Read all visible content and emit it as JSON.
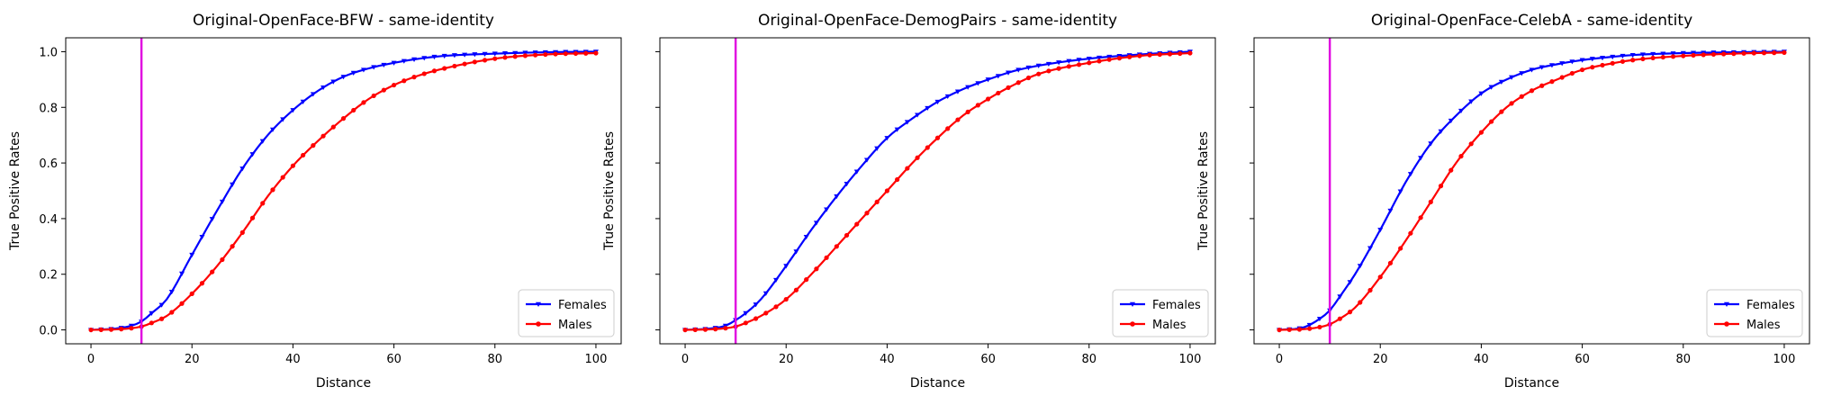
{
  "chart_data": [
    {
      "type": "line",
      "title": "Original-OpenFace-BFW - same-identity",
      "xlabel": "Distance",
      "ylabel": "True Positive Rates",
      "xlim": [
        -5,
        105
      ],
      "ylim": [
        -0.05,
        1.05
      ],
      "xticks": [
        0,
        20,
        40,
        60,
        80,
        100
      ],
      "yticks": [
        0.0,
        0.2,
        0.4,
        0.6,
        0.8,
        1.0
      ],
      "ytick_labels_shown": true,
      "threshold_x": 10,
      "threshold_color": "#e000e0",
      "legend_position": "lower right",
      "series": [
        {
          "name": "Females",
          "color": "#0000ff",
          "marker": "triangle-down",
          "x": [
            0,
            5,
            8,
            10,
            12,
            15,
            20,
            25,
            30,
            35,
            40,
            45,
            50,
            55,
            60,
            65,
            70,
            80,
            90,
            100
          ],
          "y": [
            0.0,
            0.005,
            0.015,
            0.03,
            0.06,
            0.11,
            0.27,
            0.43,
            0.58,
            0.7,
            0.79,
            0.86,
            0.91,
            0.94,
            0.96,
            0.975,
            0.985,
            0.993,
            0.998,
            1.0
          ]
        },
        {
          "name": "Males",
          "color": "#ff0000",
          "marker": "circle",
          "x": [
            0,
            5,
            8,
            10,
            12,
            15,
            20,
            25,
            30,
            35,
            40,
            45,
            50,
            55,
            60,
            65,
            70,
            80,
            90,
            100
          ],
          "y": [
            0.0,
            0.002,
            0.006,
            0.012,
            0.025,
            0.05,
            0.13,
            0.23,
            0.35,
            0.48,
            0.59,
            0.68,
            0.76,
            0.83,
            0.88,
            0.915,
            0.94,
            0.975,
            0.99,
            0.995
          ]
        }
      ]
    },
    {
      "type": "line",
      "title": "Original-OpenFace-DemogPairs - same-identity",
      "xlabel": "Distance",
      "ylabel": "True Positive Rates",
      "xlim": [
        -5,
        105
      ],
      "ylim": [
        -0.05,
        1.05
      ],
      "xticks": [
        0,
        20,
        40,
        60,
        80,
        100
      ],
      "yticks": [
        0.0,
        0.2,
        0.4,
        0.6,
        0.8,
        1.0
      ],
      "ytick_labels_shown": false,
      "threshold_x": 10,
      "threshold_color": "#e000e0",
      "legend_position": "lower right",
      "series": [
        {
          "name": "Females",
          "color": "#0000ff",
          "marker": "triangle-down",
          "x": [
            0,
            5,
            8,
            10,
            12,
            15,
            20,
            25,
            30,
            35,
            40,
            45,
            50,
            55,
            60,
            65,
            70,
            80,
            90,
            100
          ],
          "y": [
            0.0,
            0.005,
            0.015,
            0.035,
            0.06,
            0.11,
            0.23,
            0.36,
            0.48,
            0.59,
            0.69,
            0.76,
            0.82,
            0.865,
            0.9,
            0.93,
            0.95,
            0.975,
            0.99,
            1.0
          ]
        },
        {
          "name": "Males",
          "color": "#ff0000",
          "marker": "circle",
          "x": [
            0,
            5,
            8,
            10,
            12,
            15,
            20,
            25,
            30,
            35,
            40,
            45,
            50,
            55,
            60,
            65,
            70,
            80,
            90,
            100
          ],
          "y": [
            0.0,
            0.002,
            0.006,
            0.012,
            0.025,
            0.05,
            0.11,
            0.2,
            0.3,
            0.4,
            0.5,
            0.6,
            0.69,
            0.77,
            0.83,
            0.88,
            0.92,
            0.96,
            0.985,
            0.995
          ]
        }
      ]
    },
    {
      "type": "line",
      "title": "Original-OpenFace-CelebA - same-identity",
      "xlabel": "Distance",
      "ylabel": "True Positive Rates",
      "xlim": [
        -5,
        105
      ],
      "ylim": [
        -0.05,
        1.05
      ],
      "xticks": [
        0,
        20,
        40,
        60,
        80,
        100
      ],
      "yticks": [
        0.0,
        0.2,
        0.4,
        0.6,
        0.8,
        1.0
      ],
      "ytick_labels_shown": false,
      "threshold_x": 10,
      "threshold_color": "#e000e0",
      "legend_position": "lower right",
      "series": [
        {
          "name": "Females",
          "color": "#0000ff",
          "marker": "triangle-down",
          "x": [
            0,
            5,
            8,
            10,
            12,
            15,
            20,
            25,
            30,
            35,
            40,
            45,
            50,
            55,
            60,
            65,
            70,
            80,
            90,
            100
          ],
          "y": [
            0.0,
            0.01,
            0.04,
            0.07,
            0.12,
            0.2,
            0.36,
            0.53,
            0.67,
            0.77,
            0.85,
            0.9,
            0.935,
            0.955,
            0.97,
            0.98,
            0.988,
            0.995,
            0.998,
            1.0
          ]
        },
        {
          "name": "Males",
          "color": "#ff0000",
          "marker": "circle",
          "x": [
            0,
            5,
            8,
            10,
            12,
            15,
            20,
            25,
            30,
            35,
            40,
            45,
            50,
            55,
            60,
            65,
            70,
            80,
            90,
            100
          ],
          "y": [
            0.0,
            0.003,
            0.01,
            0.02,
            0.04,
            0.08,
            0.19,
            0.32,
            0.46,
            0.6,
            0.71,
            0.8,
            0.86,
            0.9,
            0.935,
            0.955,
            0.97,
            0.985,
            0.993,
            0.997
          ]
        }
      ]
    }
  ]
}
